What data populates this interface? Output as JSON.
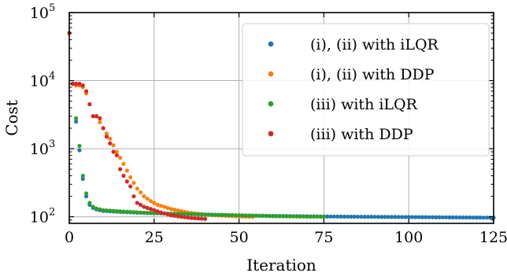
{
  "chart_data": {
    "type": "scatter",
    "xlabel": "Iteration",
    "ylabel": "Cost",
    "xlim": [
      0,
      125
    ],
    "ylim": [
      80,
      100000
    ],
    "yscale": "log",
    "grid": true,
    "legend_position": "top-right",
    "x_ticks": [
      "0",
      "25",
      "50",
      "75",
      "100",
      "125"
    ],
    "y_ticks": [
      {
        "base": "10",
        "exp": "2"
      },
      {
        "base": "10",
        "exp": "3"
      },
      {
        "base": "10",
        "exp": "4"
      },
      {
        "base": "10",
        "exp": "5"
      }
    ],
    "series": [
      {
        "name": "(i), (ii) with iLQR",
        "color": "#1f77b4",
        "x": [
          0,
          1,
          2,
          3,
          4,
          5,
          6,
          7,
          8,
          10,
          15,
          20,
          25,
          30,
          40,
          50,
          60,
          75,
          100,
          125
        ],
        "y": [
          50000,
          9000,
          2500,
          950,
          360,
          200,
          150,
          135,
          128,
          122,
          118,
          115,
          113,
          111,
          108,
          105,
          103,
          101,
          99,
          97
        ]
      },
      {
        "name": "(i), (ii) with DDP",
        "color": "#ff7f0e",
        "x": [
          0,
          1,
          2,
          3,
          4,
          5,
          6,
          7,
          8,
          10,
          12,
          14,
          16,
          18,
          20,
          22,
          24,
          26,
          28,
          30,
          35,
          40,
          45,
          50,
          54
        ],
        "y": [
          50000,
          9000,
          8500,
          8500,
          8000,
          6500,
          4500,
          3000,
          3000,
          2000,
          1400,
          900,
          600,
          380,
          260,
          200,
          170,
          150,
          140,
          130,
          115,
          108,
          104,
          101,
          100
        ]
      },
      {
        "name": "(iii) with iLQR",
        "color": "#2ca02c",
        "x": [
          0,
          1,
          2,
          3,
          4,
          5,
          6,
          7,
          8,
          10,
          15,
          20,
          25,
          30,
          40,
          50,
          60,
          75
        ],
        "y": [
          50000,
          9000,
          2800,
          1100,
          400,
          220,
          160,
          140,
          132,
          125,
          120,
          116,
          113,
          111,
          108,
          105,
          102,
          100
        ]
      },
      {
        "name": "(iii) with DDP",
        "color": "#d62728",
        "x": [
          0,
          1,
          2,
          3,
          4,
          5,
          6,
          7,
          8,
          9,
          10,
          11,
          12,
          13,
          14,
          15,
          16,
          17,
          18,
          19,
          20,
          21,
          22,
          24,
          26,
          28,
          30,
          33,
          36,
          40
        ],
        "y": [
          50000,
          9000,
          9000,
          9000,
          8500,
          7000,
          4500,
          3000,
          3000,
          2800,
          2000,
          1500,
          1200,
          900,
          800,
          500,
          400,
          330,
          280,
          200,
          160,
          150,
          140,
          130,
          120,
          112,
          105,
          100,
          96,
          93
        ]
      }
    ]
  }
}
